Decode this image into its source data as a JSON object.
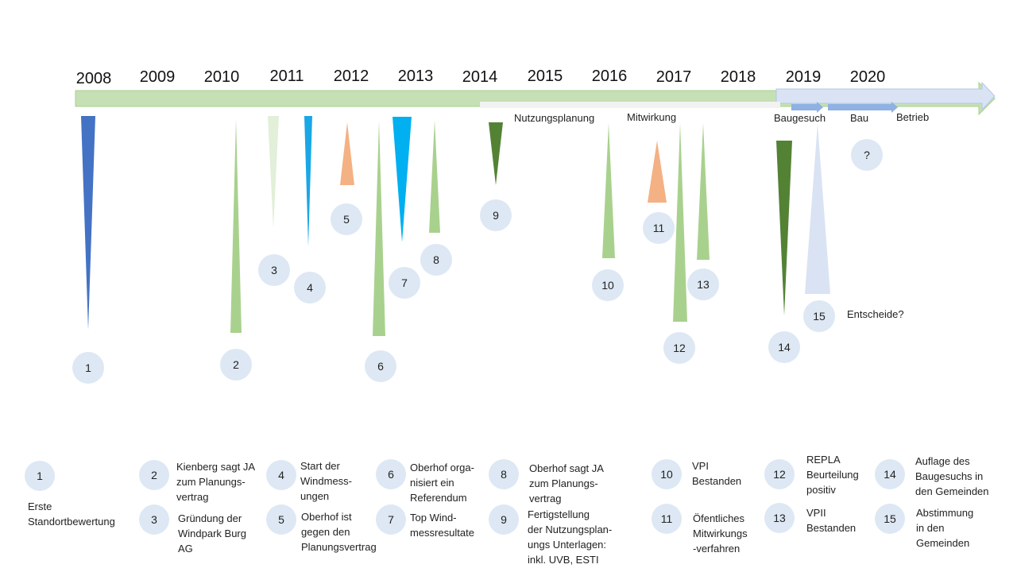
{
  "timeline": {
    "years": [
      "2008",
      "2009",
      "2010",
      "2011",
      "2012",
      "2013",
      "2014",
      "2015",
      "2016",
      "2017",
      "2018",
      "2019",
      "2020"
    ],
    "phases": {
      "nutzungsplanung": "Nutzungsplanung",
      "mitwirkung": "Mitwirkung",
      "baugesuch": "Baugesuch",
      "bau": "Bau",
      "betrieb": "Betrieb"
    },
    "future_marker": "?",
    "entscheide_note": "Entscheide?"
  },
  "events": [
    {
      "num": "1",
      "color": "#4472c4"
    },
    {
      "num": "2",
      "color": "#a9d18e"
    },
    {
      "num": "3",
      "color": "#e2efd9"
    },
    {
      "num": "4",
      "color": "#1aa7e6"
    },
    {
      "num": "5",
      "color": "#f4b183"
    },
    {
      "num": "6",
      "color": "#a9d18e"
    },
    {
      "num": "7",
      "color": "#00b0f0"
    },
    {
      "num": "8",
      "color": "#a9d18e"
    },
    {
      "num": "9",
      "color": "#548235"
    },
    {
      "num": "10",
      "color": "#a9d18e"
    },
    {
      "num": "11",
      "color": "#f4b183"
    },
    {
      "num": "12",
      "color": "#a9d18e"
    },
    {
      "num": "13",
      "color": "#a9d18e"
    },
    {
      "num": "14",
      "color": "#548235"
    },
    {
      "num": "15",
      "color": "#dae3f3"
    }
  ],
  "legend": [
    {
      "num": "1",
      "text": "Erste\nStandortbewertung"
    },
    {
      "num": "2",
      "text": "Kienberg sagt JA\nzum Planungs-\nvertrag"
    },
    {
      "num": "3",
      "text": "Gründung der\nWindpark Burg\nAG"
    },
    {
      "num": "4",
      "text": "Start der\nWindmess-\nungen"
    },
    {
      "num": "5",
      "text": "Oberhof ist\ngegen den\nPlanungsvertrag"
    },
    {
      "num": "6",
      "text": "Oberhof orga-\nnisiert ein\nReferendum"
    },
    {
      "num": "7",
      "text": "Top Wind-\nmessresultate"
    },
    {
      "num": "8",
      "text": "Oberhof sagt JA\nzum Planungs-\nvertrag"
    },
    {
      "num": "9",
      "text": "Fertigstellung\nder Nutzungsplan-\nungs Unterlagen:\ninkl. UVB, ESTI"
    },
    {
      "num": "10",
      "text": "VPI\nBestanden"
    },
    {
      "num": "11",
      "text": "Öfentliches\nMitwirkungs\n-verfahren"
    },
    {
      "num": "12",
      "text": "REPLA\nBeurteilung\npositiv"
    },
    {
      "num": "13",
      "text": "VPII\nBestanden"
    },
    {
      "num": "14",
      "text": "Auflage des\nBaugesuchs in\nden Gemeinden"
    },
    {
      "num": "15",
      "text": "Abstimmung\nin den\nGemeinden"
    }
  ]
}
